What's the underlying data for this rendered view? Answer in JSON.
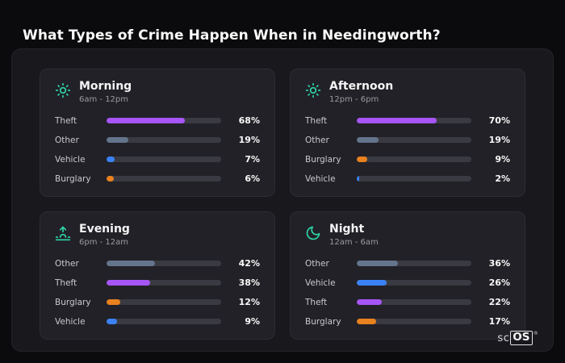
{
  "chart_data": {
    "type": "bar",
    "title": "What Types of Crime Happen When in Needingworth?",
    "orientation": "horizontal",
    "xlim": [
      0,
      100
    ],
    "value_suffix": "%",
    "grid": false,
    "icon_color": "#2fd4a7",
    "track_color": "#3a3a42",
    "category_colors": {
      "Theft": "#a855f7",
      "Other": "#64748b",
      "Vehicle": "#3b82f6",
      "Burglary": "#e8811e"
    },
    "groups": [
      {
        "name": "Morning",
        "time_range": "6am - 12pm",
        "icon": "sun-icon",
        "categories": [
          "Theft",
          "Other",
          "Vehicle",
          "Burglary"
        ],
        "values": [
          68,
          19,
          7,
          6
        ]
      },
      {
        "name": "Afternoon",
        "time_range": "12pm - 6pm",
        "icon": "sun-icon",
        "categories": [
          "Theft",
          "Other",
          "Burglary",
          "Vehicle"
        ],
        "values": [
          70,
          19,
          9,
          2
        ]
      },
      {
        "name": "Evening",
        "time_range": "6pm - 12am",
        "icon": "sunset-icon",
        "categories": [
          "Other",
          "Theft",
          "Burglary",
          "Vehicle"
        ],
        "values": [
          42,
          38,
          12,
          9
        ]
      },
      {
        "name": "Night",
        "time_range": "12am - 6am",
        "icon": "moon-icon",
        "categories": [
          "Other",
          "Vehicle",
          "Theft",
          "Burglary"
        ],
        "values": [
          36,
          26,
          22,
          17
        ]
      }
    ]
  },
  "logo": {
    "prefix": "sc",
    "box_text": "OS",
    "registered": "®"
  }
}
